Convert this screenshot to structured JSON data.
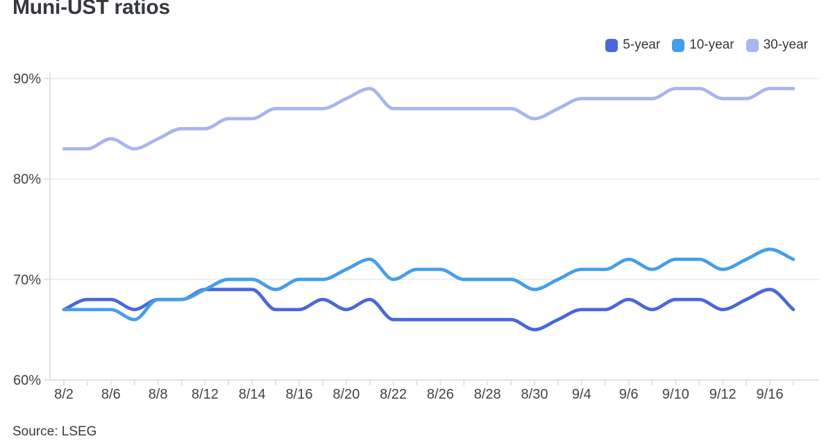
{
  "title": "Muni-UST ratios",
  "source": "Source: LSEG",
  "chart_data": {
    "type": "line",
    "title": "Muni-UST ratios",
    "x": [
      "8/2",
      "8/5",
      "8/6",
      "8/7",
      "8/8",
      "8/9",
      "8/12",
      "8/13",
      "8/14",
      "8/15",
      "8/16",
      "8/19",
      "8/20",
      "8/21",
      "8/22",
      "8/23",
      "8/26",
      "8/27",
      "8/28",
      "8/29",
      "8/30",
      "9/3",
      "9/4",
      "9/5",
      "9/6",
      "9/9",
      "9/10",
      "9/11",
      "9/12",
      "9/13",
      "9/16",
      "9/17"
    ],
    "x_labeled_ticks": [
      "8/2",
      "8/6",
      "8/8",
      "8/12",
      "8/14",
      "8/16",
      "8/20",
      "8/22",
      "8/26",
      "8/28",
      "8/30",
      "9/4",
      "9/6",
      "9/10",
      "9/12",
      "9/16"
    ],
    "series": [
      {
        "name": "5-year",
        "color": "#4a66de",
        "values": [
          67,
          68,
          68,
          67,
          68,
          68,
          69,
          69,
          69,
          67,
          67,
          68,
          67,
          68,
          66,
          66,
          66,
          66,
          66,
          66,
          65,
          66,
          67,
          67,
          68,
          67,
          68,
          68,
          67,
          68,
          69,
          67
        ]
      },
      {
        "name": "10-year",
        "color": "#459ee9",
        "values": [
          67,
          67,
          67,
          66,
          68,
          68,
          69,
          70,
          70,
          69,
          70,
          70,
          71,
          72,
          70,
          71,
          71,
          70,
          70,
          70,
          69,
          70,
          71,
          71,
          72,
          71,
          72,
          72,
          71,
          72,
          73,
          72
        ]
      },
      {
        "name": "30-year",
        "color": "#a7b5f0",
        "values": [
          83,
          83,
          84,
          83,
          84,
          85,
          85,
          86,
          86,
          87,
          87,
          87,
          88,
          89,
          87,
          87,
          87,
          87,
          87,
          87,
          86,
          87,
          88,
          88,
          88,
          88,
          89,
          89,
          88,
          88,
          89,
          89
        ]
      }
    ],
    "ylim": [
      60,
      90
    ],
    "yticks": [
      60,
      70,
      80,
      90
    ],
    "ytick_suffix": "%",
    "grid": "horizontal",
    "smoothing": "monotone",
    "legend_position": "top-right"
  }
}
